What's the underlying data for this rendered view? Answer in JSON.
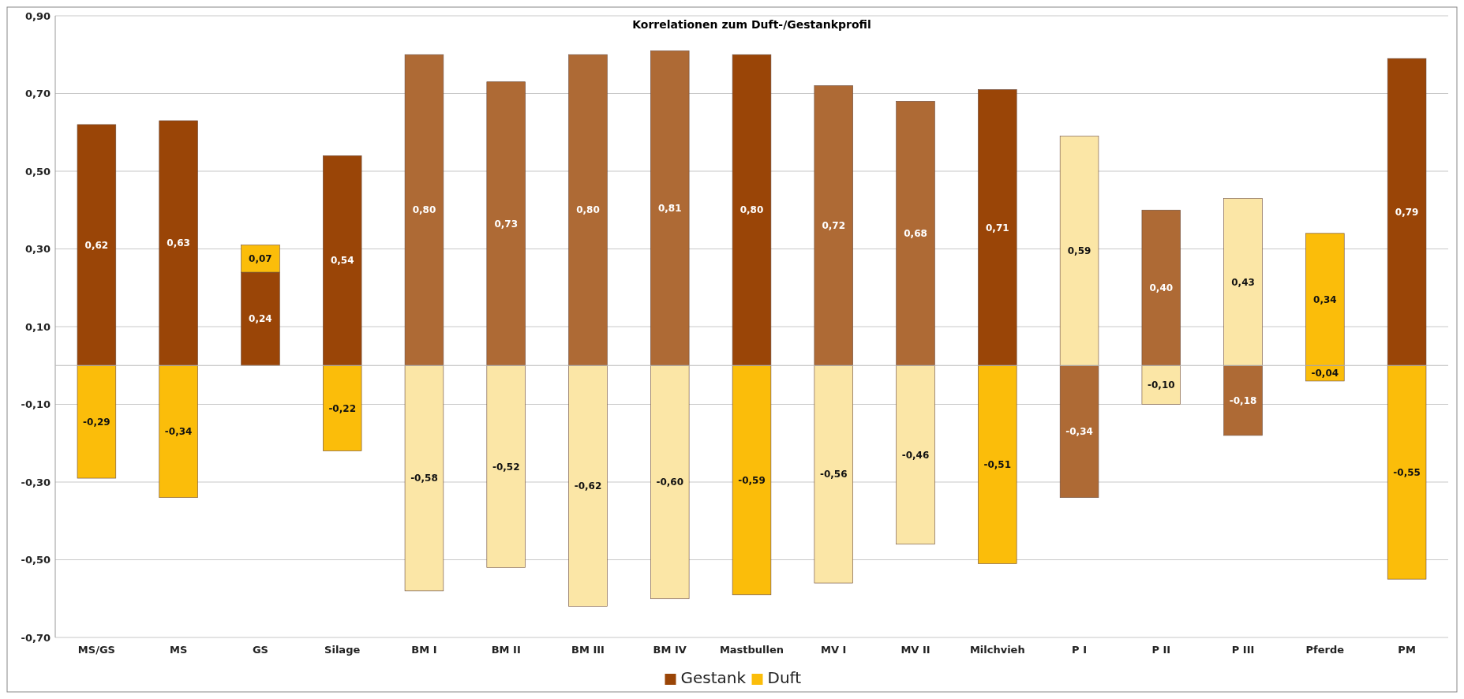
{
  "chart_data": {
    "type": "bar",
    "stacked": true,
    "title": "Korrelationen zum Duft-/Gestankprofil",
    "categories": [
      "MS/GS",
      "MS",
      "GS",
      "Silage",
      "BM I",
      "BM II",
      "BM III",
      "BM IV",
      "Mastbullen",
      "MV I",
      "MV II",
      "Milchvieh",
      "P I",
      "P II",
      "P III",
      "Pferde",
      "PM"
    ],
    "series": [
      {
        "name": "Gestank",
        "color": "#9a4507",
        "values": [
          0.62,
          0.63,
          0.24,
          0.54,
          0.8,
          0.73,
          0.8,
          0.81,
          0.8,
          0.72,
          0.68,
          0.71,
          -0.34,
          0.4,
          -0.18,
          -0.04,
          0.79
        ],
        "value_labels": [
          "0,62",
          "0,63",
          "0,24",
          "0,54",
          "0,80",
          "0,73",
          "0,80",
          "0,81",
          "0,80",
          "0,72",
          "0,68",
          "0,71",
          "-0,34",
          "0,40",
          "-0,18",
          "-0,04",
          "0,79"
        ],
        "colors": [
          "#9a4507",
          "#9a4507",
          "#9a4507",
          "#9a4507",
          "#ae6a35",
          "#ae6a35",
          "#ae6a35",
          "#ae6a35",
          "#9a4507",
          "#ae6a35",
          "#ae6a35",
          "#9a4507",
          "#ae6a35",
          "#ae6a35",
          "#ae6a35",
          "#fbbd0a",
          "#9a4507"
        ]
      },
      {
        "name": "Duft",
        "color": "#fbbd0a",
        "values": [
          -0.29,
          -0.34,
          0.07,
          -0.22,
          -0.58,
          -0.52,
          -0.62,
          -0.6,
          -0.59,
          -0.56,
          -0.46,
          -0.51,
          0.59,
          -0.1,
          0.43,
          0.34,
          -0.55
        ],
        "value_labels": [
          "-0,29",
          "-0,34",
          "0,07",
          "-0,22",
          "-0,58",
          "-0,52",
          "-0,62",
          "-0,60",
          "-0,59",
          "-0,56",
          "-0,46",
          "-0,51",
          "0,59",
          "-0,10",
          "0,43",
          "0,34",
          "-0,55"
        ],
        "colors": [
          "#fbbd0a",
          "#fbbd0a",
          "#fbbd0a",
          "#fbbd0a",
          "#fbe6a6",
          "#fbe6a6",
          "#fbe6a6",
          "#fbe6a6",
          "#fbbd0a",
          "#fbe6a6",
          "#fbe6a6",
          "#fbbd0a",
          "#fbe6a6",
          "#fbe6a6",
          "#fbe6a6",
          "#fbbd0a",
          "#fbbd0a"
        ]
      }
    ],
    "ylim": [
      -0.7,
      0.9
    ],
    "yticks": [
      {
        "value": -0.7,
        "label": "-0,70"
      },
      {
        "value": -0.5,
        "label": "-0,50"
      },
      {
        "value": -0.3,
        "label": "-0,30"
      },
      {
        "value": -0.1,
        "label": "-0,10"
      },
      {
        "value": 0.1,
        "label": "0,10"
      },
      {
        "value": 0.3,
        "label": "0,30"
      },
      {
        "value": 0.5,
        "label": "0,50"
      },
      {
        "value": 0.7,
        "label": "0,70"
      },
      {
        "value": 0.9,
        "label": "0,90"
      }
    ],
    "grid": "y",
    "legend": "bottom"
  }
}
